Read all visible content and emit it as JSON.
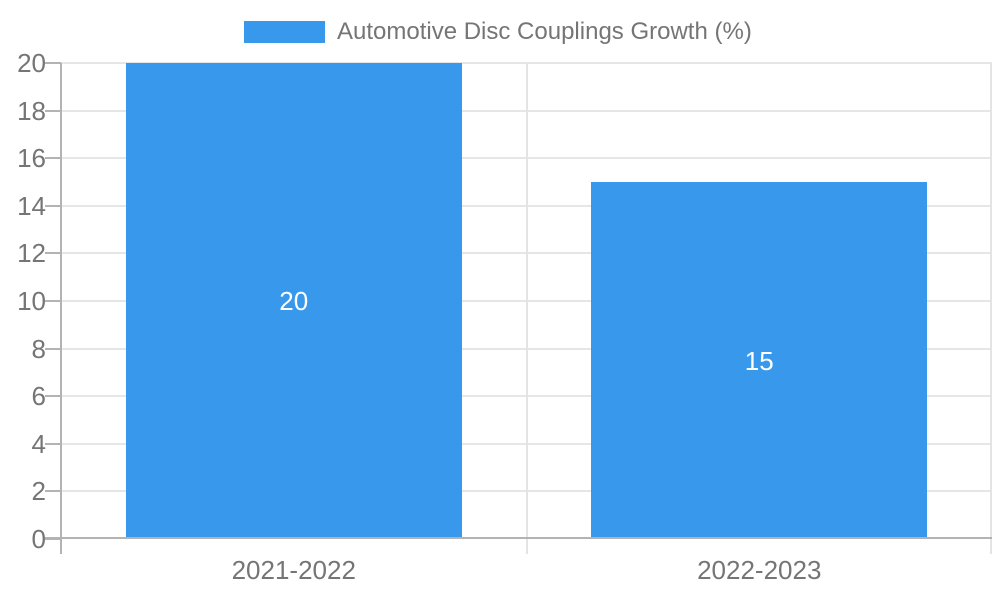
{
  "legend": {
    "label": "Automotive Disc Couplings Growth (%)"
  },
  "chart_data": {
    "type": "bar",
    "title": "",
    "xlabel": "",
    "ylabel": "",
    "categories": [
      "2021-2022",
      "2022-2023"
    ],
    "values": [
      20,
      15
    ],
    "series": [
      {
        "name": "Automotive Disc Couplings Growth (%)",
        "values": [
          20,
          15
        ]
      }
    ],
    "bar_value_labels": [
      "20",
      "15"
    ],
    "ylim": [
      0,
      20
    ],
    "yticks": [
      0,
      2,
      4,
      6,
      8,
      10,
      12,
      14,
      16,
      18,
      20
    ],
    "grid": true,
    "legend_position": "top",
    "colors": {
      "bar": "#3899EC",
      "bar_label_text": "#ffffff",
      "axis_text": "#757575",
      "gridline": "#e6e6e6",
      "axis_line": "#b3b3b3",
      "divider": "#e4e4e4"
    }
  }
}
